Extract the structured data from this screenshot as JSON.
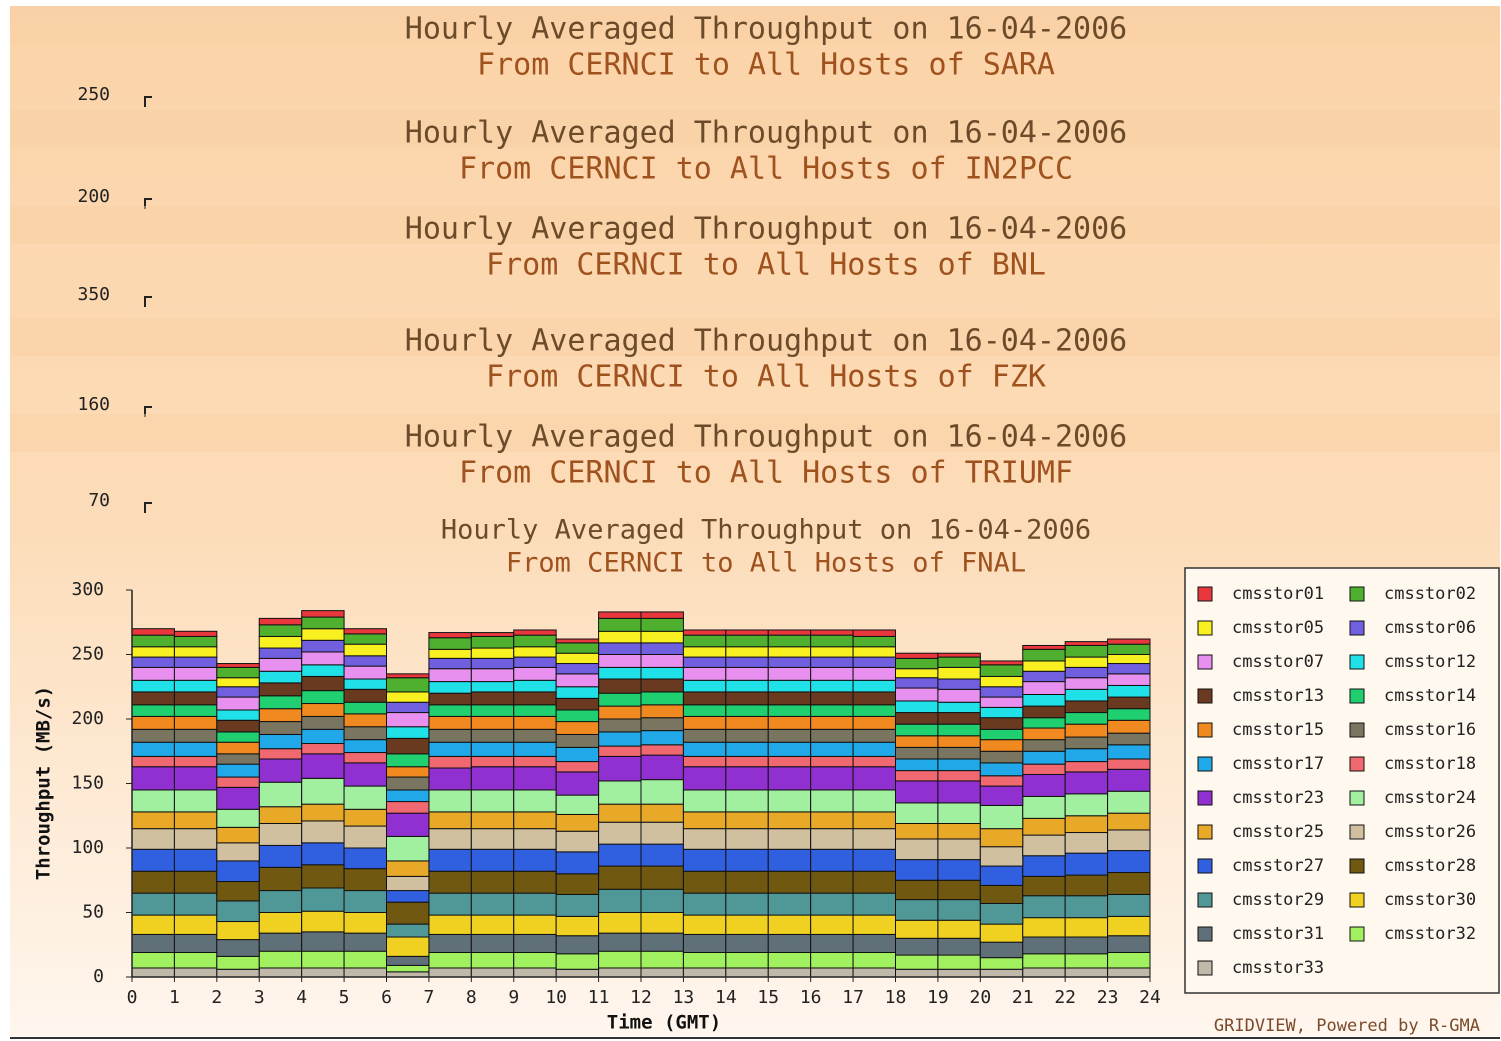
{
  "chart_data": [
    {
      "type": "header",
      "title": "Hourly Averaged Throughput on 16-04-2006",
      "subtitle": "From CERNCI to All Hosts of SARA",
      "yticks": [
        250
      ]
    },
    {
      "type": "header",
      "title": "Hourly Averaged Throughput on 16-04-2006",
      "subtitle": "From CERNCI to All Hosts of IN2PCC",
      "yticks": [
        200
      ]
    },
    {
      "type": "header",
      "title": "Hourly Averaged Throughput on 16-04-2006",
      "subtitle": "From CERNCI to All Hosts of BNL",
      "yticks": [
        350
      ]
    },
    {
      "type": "header",
      "title": "Hourly Averaged Throughput on 16-04-2006",
      "subtitle": "From CERNCI to All Hosts of FZK",
      "yticks": [
        160
      ]
    },
    {
      "type": "header",
      "title": "Hourly Averaged Throughput on 16-04-2006",
      "subtitle": "From CERNCI to All Hosts of TRIUMF",
      "yticks": [
        70
      ]
    },
    {
      "type": "stacked_bar",
      "title": "Hourly Averaged Throughput on 16-04-2006",
      "subtitle": "From CERNCI to All Hosts of FNAL",
      "x_label": "Time (GMT)",
      "y_label": "Throughput (MB/s)",
      "footer": "GRIDVIEW, Powered by R-GMA",
      "x": [
        0,
        1,
        2,
        3,
        4,
        5,
        6,
        7,
        8,
        9,
        10,
        11,
        12,
        13,
        14,
        15,
        16,
        17,
        18,
        19,
        20,
        21,
        22,
        23
      ],
      "xlim": [
        0,
        24
      ],
      "xticks": [
        0,
        1,
        2,
        3,
        4,
        5,
        6,
        7,
        8,
        9,
        10,
        11,
        12,
        13,
        14,
        15,
        16,
        17,
        18,
        19,
        20,
        21,
        22,
        23,
        24
      ],
      "ylim": [
        0,
        300
      ],
      "yticks": [
        0,
        50,
        100,
        150,
        200,
        250,
        300
      ],
      "series": [
        {
          "name": "cmsstor01",
          "color": "#e8383d",
          "values": [
            5,
            4,
            3,
            5,
            5,
            4,
            3,
            4,
            3,
            4,
            3,
            5,
            5,
            4,
            4,
            4,
            4,
            5,
            4,
            3,
            3,
            3,
            3,
            4
          ]
        },
        {
          "name": "cmsstor02",
          "color": "#4fb02f",
          "values": [
            9,
            8,
            8,
            9,
            9,
            8,
            11,
            9,
            9,
            9,
            8,
            10,
            10,
            9,
            9,
            9,
            9,
            8,
            8,
            8,
            9,
            9,
            9,
            8
          ]
        },
        {
          "name": "cmsstor05",
          "color": "#f8f020",
          "values": [
            8,
            8,
            7,
            9,
            9,
            9,
            8,
            7,
            8,
            8,
            8,
            9,
            9,
            8,
            8,
            8,
            8,
            8,
            7,
            9,
            8,
            8,
            8,
            7
          ]
        },
        {
          "name": "cmsstor06",
          "color": "#7060e0",
          "values": [
            8,
            8,
            8,
            8,
            9,
            8,
            8,
            8,
            8,
            8,
            8,
            9,
            9,
            8,
            8,
            8,
            8,
            8,
            8,
            8,
            8,
            8,
            8,
            8
          ]
        },
        {
          "name": "cmsstor07",
          "color": "#e890f0",
          "values": [
            10,
            10,
            10,
            10,
            10,
            10,
            11,
            10,
            10,
            10,
            10,
            10,
            10,
            10,
            10,
            10,
            10,
            10,
            10,
            10,
            8,
            10,
            9,
            9
          ]
        },
        {
          "name": "cmsstor12",
          "color": "#20e0e8",
          "values": [
            9,
            9,
            8,
            9,
            9,
            8,
            9,
            9,
            8,
            9,
            9,
            9,
            9,
            9,
            9,
            9,
            9,
            9,
            9,
            8,
            8,
            9,
            9,
            9
          ]
        },
        {
          "name": "cmsstor13",
          "color": "#6a3a20",
          "values": [
            10,
            10,
            9,
            10,
            11,
            10,
            12,
            9,
            10,
            10,
            9,
            11,
            10,
            10,
            10,
            10,
            10,
            10,
            9,
            9,
            9,
            9,
            9,
            9
          ]
        },
        {
          "name": "cmsstor14",
          "color": "#20d070",
          "values": [
            9,
            9,
            8,
            10,
            10,
            9,
            10,
            9,
            9,
            9,
            9,
            10,
            10,
            9,
            9,
            9,
            9,
            9,
            9,
            9,
            8,
            8,
            9,
            9
          ]
        },
        {
          "name": "cmsstor15",
          "color": "#f08a20",
          "values": [
            10,
            10,
            9,
            10,
            10,
            10,
            8,
            10,
            10,
            10,
            10,
            10,
            10,
            10,
            10,
            10,
            10,
            10,
            9,
            9,
            9,
            9,
            10,
            10
          ]
        },
        {
          "name": "cmsstor16",
          "color": "#7a7560",
          "values": [
            10,
            10,
            8,
            10,
            10,
            10,
            10,
            10,
            10,
            10,
            10,
            10,
            10,
            10,
            10,
            10,
            10,
            10,
            9,
            9,
            9,
            9,
            9,
            9
          ]
        },
        {
          "name": "cmsstor17",
          "color": "#20a8e8",
          "values": [
            11,
            11,
            10,
            11,
            11,
            10,
            9,
            11,
            11,
            11,
            11,
            11,
            11,
            11,
            11,
            11,
            11,
            11,
            9,
            9,
            10,
            10,
            10,
            11
          ]
        },
        {
          "name": "cmsstor18",
          "color": "#f06870",
          "values": [
            8,
            8,
            8,
            8,
            8,
            8,
            9,
            9,
            8,
            8,
            8,
            8,
            8,
            8,
            8,
            8,
            8,
            8,
            8,
            8,
            8,
            8,
            8,
            8
          ]
        },
        {
          "name": "cmsstor23",
          "color": "#9030d0",
          "values": [
            18,
            18,
            17,
            18,
            19,
            18,
            18,
            17,
            18,
            18,
            18,
            19,
            19,
            18,
            18,
            18,
            18,
            18,
            17,
            17,
            15,
            17,
            17,
            17
          ]
        },
        {
          "name": "cmsstor24",
          "color": "#a0f0a0",
          "values": [
            17,
            17,
            14,
            19,
            20,
            18,
            19,
            17,
            17,
            17,
            15,
            18,
            19,
            17,
            17,
            17,
            17,
            17,
            16,
            16,
            18,
            17,
            17,
            17
          ]
        },
        {
          "name": "cmsstor25",
          "color": "#e8a828",
          "values": [
            13,
            13,
            12,
            13,
            13,
            13,
            12,
            13,
            13,
            13,
            13,
            14,
            14,
            13,
            13,
            13,
            13,
            13,
            12,
            12,
            14,
            13,
            13,
            13
          ]
        },
        {
          "name": "cmsstor26",
          "color": "#d0c0a0",
          "values": [
            16,
            16,
            14,
            17,
            17,
            17,
            11,
            16,
            16,
            16,
            16,
            17,
            17,
            16,
            16,
            16,
            16,
            16,
            16,
            16,
            15,
            16,
            16,
            16
          ]
        },
        {
          "name": "cmsstor27",
          "color": "#3060e0",
          "values": [
            17,
            17,
            16,
            17,
            17,
            16,
            9,
            17,
            17,
            17,
            17,
            17,
            17,
            17,
            17,
            17,
            17,
            17,
            16,
            16,
            15,
            16,
            17,
            17
          ]
        },
        {
          "name": "cmsstor28",
          "color": "#705810",
          "values": [
            17,
            17,
            15,
            18,
            18,
            17,
            17,
            17,
            17,
            17,
            16,
            18,
            18,
            17,
            17,
            17,
            17,
            17,
            15,
            15,
            14,
            15,
            16,
            17
          ]
        },
        {
          "name": "cmsstor29",
          "color": "#509898",
          "values": [
            17,
            17,
            16,
            17,
            18,
            17,
            10,
            17,
            17,
            17,
            17,
            18,
            18,
            17,
            17,
            17,
            17,
            17,
            16,
            16,
            16,
            17,
            17,
            17
          ]
        },
        {
          "name": "cmsstor30",
          "color": "#f0d020",
          "values": [
            15,
            15,
            14,
            16,
            16,
            16,
            15,
            15,
            15,
            15,
            15,
            16,
            16,
            15,
            15,
            15,
            15,
            15,
            14,
            14,
            14,
            15,
            15,
            15
          ]
        },
        {
          "name": "cmsstor31",
          "color": "#607078",
          "values": [
            14,
            14,
            13,
            14,
            15,
            14,
            7,
            14,
            14,
            14,
            14,
            14,
            14,
            14,
            14,
            14,
            14,
            14,
            13,
            13,
            12,
            13,
            13,
            13
          ]
        },
        {
          "name": "cmsstor32",
          "color": "#a0f060",
          "values": [
            12,
            12,
            10,
            13,
            13,
            13,
            5,
            12,
            12,
            12,
            12,
            13,
            13,
            12,
            12,
            12,
            12,
            12,
            11,
            11,
            9,
            11,
            11,
            12
          ]
        },
        {
          "name": "cmsstor33",
          "color": "#c0b8a8",
          "values": [
            7,
            7,
            6,
            7,
            7,
            7,
            4,
            7,
            7,
            7,
            6,
            7,
            7,
            7,
            7,
            7,
            7,
            7,
            6,
            6,
            6,
            7,
            7,
            7
          ]
        }
      ]
    }
  ]
}
